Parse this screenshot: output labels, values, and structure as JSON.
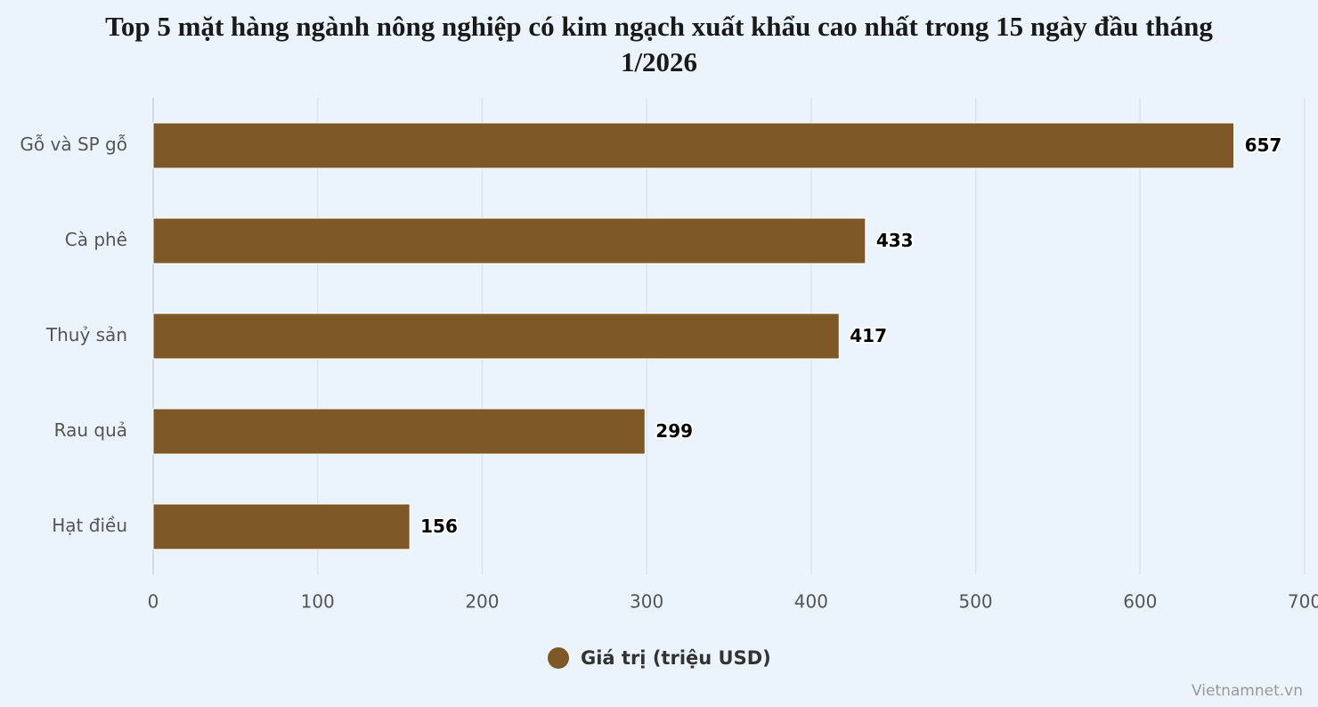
{
  "chart_data": {
    "type": "hbar",
    "title": "Top 5 mặt hàng ngành nông nghiệp có kim ngạch xuất khẩu cao nhất trong 15 ngày đầu tháng 1/2026",
    "categories": [
      "Gỗ và SP gỗ",
      "Cà phê",
      "Thuỷ sản",
      "Rau quả",
      "Hạt điều"
    ],
    "series": [
      {
        "name": "Giá trị (triệu USD)",
        "color": "#7e5826",
        "values": [
          657,
          433,
          417,
          299,
          156
        ]
      }
    ],
    "xlim": [
      0,
      700
    ],
    "xticks": [
      0,
      100,
      200,
      300,
      400,
      500,
      600,
      700
    ],
    "grid": true,
    "credit": "Vietnamnet.vn"
  }
}
